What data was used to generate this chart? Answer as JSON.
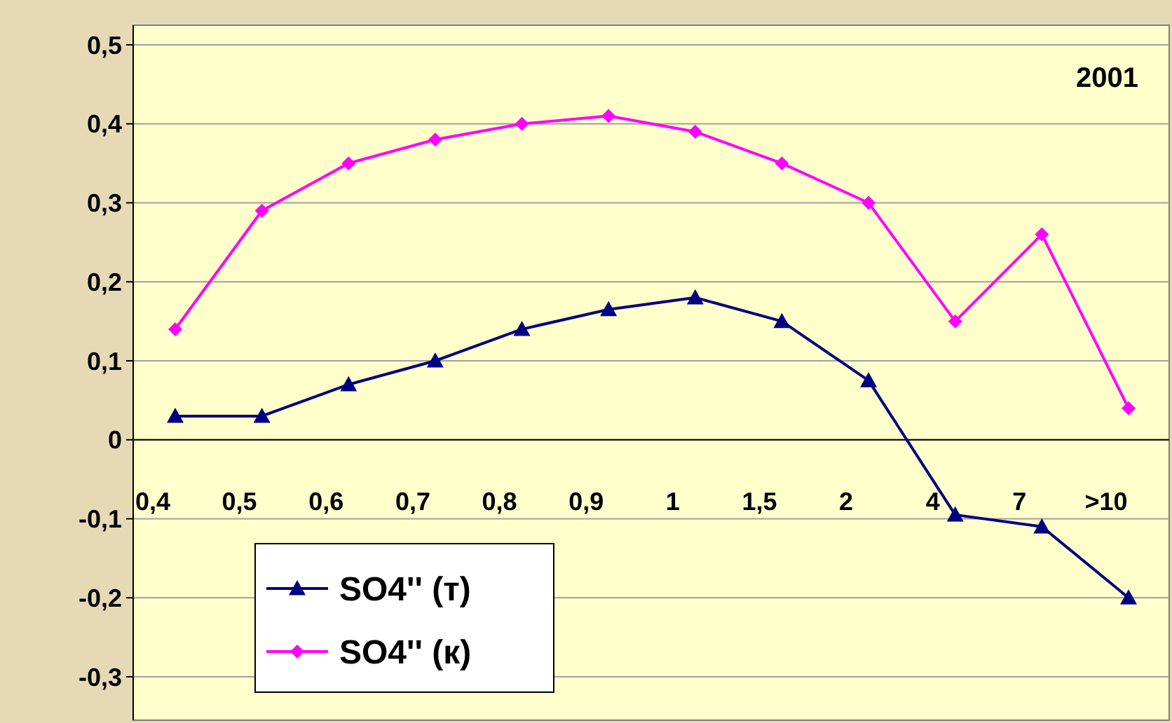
{
  "chart_data": {
    "type": "line",
    "categories": [
      "0,4",
      "0,5",
      "0,6",
      "0,7",
      "0,8",
      "0,9",
      "1",
      "1,5",
      "2",
      "4",
      "7",
      ">10"
    ],
    "series": [
      {
        "name": "SO4'' (т)",
        "color": "#000080",
        "marker": "triangle",
        "values": [
          0.03,
          0.03,
          0.07,
          0.1,
          0.14,
          0.165,
          0.18,
          0.15,
          0.075,
          -0.095,
          -0.11,
          -0.2
        ]
      },
      {
        "name": "SO4'' (к)",
        "color": "#ff00ff",
        "marker": "diamond",
        "values": [
          0.14,
          0.29,
          0.35,
          0.38,
          0.4,
          0.41,
          0.39,
          0.35,
          0.3,
          0.15,
          0.26,
          0.04
        ]
      }
    ],
    "ylim": [
      -0.3,
      0.5
    ],
    "yticks": [
      {
        "value": -0.3,
        "label": "-0,3"
      },
      {
        "value": -0.2,
        "label": "-0,2"
      },
      {
        "value": -0.1,
        "label": "-0,1"
      },
      {
        "value": 0,
        "label": "0"
      },
      {
        "value": 0.1,
        "label": "0,1"
      },
      {
        "value": 0.2,
        "label": "0,2"
      },
      {
        "value": 0.3,
        "label": "0,3"
      },
      {
        "value": 0.4,
        "label": "0,4"
      },
      {
        "value": 0.5,
        "label": "0,5"
      }
    ],
    "grid": "y",
    "legend": "bottom left",
    "annotations": [
      "2001"
    ]
  }
}
